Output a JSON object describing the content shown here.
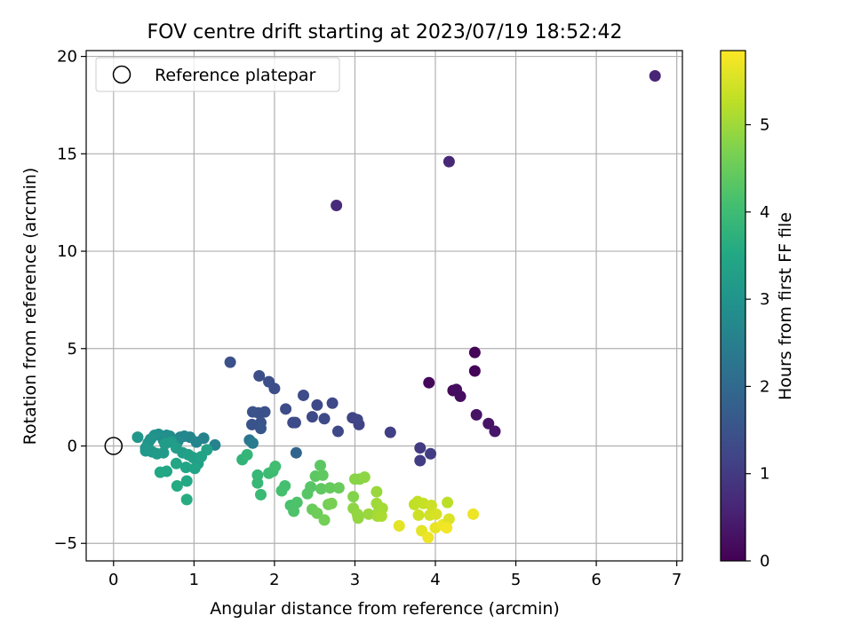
{
  "chart_data": {
    "type": "scatter",
    "title": "FOV centre drift starting at 2023/07/19 18:52:42",
    "xlabel": "Angular distance from reference (arcmin)",
    "ylabel": "Rotation from reference (arcmin)",
    "xlim": [
      -0.34,
      7.07
    ],
    "ylim": [
      -5.9,
      20.3
    ],
    "xticks": [
      0,
      1,
      2,
      3,
      4,
      5,
      6,
      7
    ],
    "yticks": [
      -5,
      0,
      5,
      10,
      15,
      20
    ],
    "grid": true,
    "legend": {
      "placement": "top-left",
      "entries": [
        {
          "label": "Reference platepar",
          "marker": "open-circle"
        }
      ]
    },
    "reference_point": {
      "x": 0,
      "y": 0
    },
    "colorbar": {
      "label": "Hours from first FF file",
      "colormap": "viridis",
      "range": [
        0,
        5.85
      ],
      "ticks": [
        0,
        1,
        2,
        3,
        4,
        5
      ]
    },
    "points": [
      {
        "x": 6.73,
        "y": 19.0,
        "t": 0.6
      },
      {
        "x": 4.17,
        "y": 14.6,
        "t": 0.65
      },
      {
        "x": 2.77,
        "y": 12.35,
        "t": 0.7
      },
      {
        "x": 4.49,
        "y": 4.8,
        "t": 0.05
      },
      {
        "x": 4.49,
        "y": 3.85,
        "t": 0.05
      },
      {
        "x": 3.92,
        "y": 3.25,
        "t": 0.1
      },
      {
        "x": 4.22,
        "y": 2.85,
        "t": 0.15
      },
      {
        "x": 4.26,
        "y": 2.9,
        "t": 0.2
      },
      {
        "x": 4.31,
        "y": 2.55,
        "t": 0.2
      },
      {
        "x": 4.51,
        "y": 1.6,
        "t": 0.3
      },
      {
        "x": 4.66,
        "y": 1.15,
        "t": 0.3
      },
      {
        "x": 4.74,
        "y": 0.75,
        "t": 0.35
      },
      {
        "x": 3.94,
        "y": -0.4,
        "t": 1.05
      },
      {
        "x": 3.81,
        "y": -0.1,
        "t": 1.0
      },
      {
        "x": 3.81,
        "y": -0.75,
        "t": 1.05
      },
      {
        "x": 3.44,
        "y": 0.7,
        "t": 1.1
      },
      {
        "x": 3.05,
        "y": 1.1,
        "t": 1.15
      },
      {
        "x": 2.97,
        "y": 1.45,
        "t": 1.2
      },
      {
        "x": 3.03,
        "y": 1.35,
        "t": 1.2
      },
      {
        "x": 2.79,
        "y": 0.75,
        "t": 1.25
      },
      {
        "x": 2.72,
        "y": 2.2,
        "t": 1.25
      },
      {
        "x": 2.62,
        "y": 1.4,
        "t": 1.3
      },
      {
        "x": 2.53,
        "y": 2.1,
        "t": 1.3
      },
      {
        "x": 2.47,
        "y": 1.5,
        "t": 1.3
      },
      {
        "x": 2.36,
        "y": 2.6,
        "t": 1.35
      },
      {
        "x": 2.26,
        "y": 1.2,
        "t": 1.35
      },
      {
        "x": 2.23,
        "y": 1.2,
        "t": 1.35
      },
      {
        "x": 2.14,
        "y": 1.9,
        "t": 1.35
      },
      {
        "x": 2.27,
        "y": -0.35,
        "t": 1.9
      },
      {
        "x": 2.0,
        "y": 2.95,
        "t": 1.4
      },
      {
        "x": 1.93,
        "y": 3.3,
        "t": 1.4
      },
      {
        "x": 1.81,
        "y": 3.6,
        "t": 1.4
      },
      {
        "x": 1.45,
        "y": 4.3,
        "t": 1.45
      },
      {
        "x": 1.88,
        "y": 1.75,
        "t": 1.45
      },
      {
        "x": 1.8,
        "y": 1.7,
        "t": 1.45
      },
      {
        "x": 1.73,
        "y": 1.75,
        "t": 1.5
      },
      {
        "x": 1.72,
        "y": 1.1,
        "t": 1.5
      },
      {
        "x": 1.83,
        "y": 1.2,
        "t": 1.5
      },
      {
        "x": 1.83,
        "y": 0.9,
        "t": 1.55
      },
      {
        "x": 1.69,
        "y": 0.3,
        "t": 2.3
      },
      {
        "x": 1.73,
        "y": 0.15,
        "t": 2.4
      },
      {
        "x": 1.26,
        "y": 0.05,
        "t": 2.6
      },
      {
        "x": 1.12,
        "y": 0.4,
        "t": 2.6
      },
      {
        "x": 1.03,
        "y": 0.2,
        "t": 2.65
      },
      {
        "x": 0.95,
        "y": 0.45,
        "t": 2.65
      },
      {
        "x": 0.88,
        "y": 0.5,
        "t": 2.7
      },
      {
        "x": 0.83,
        "y": 0.45,
        "t": 2.7
      },
      {
        "x": 0.8,
        "y": 0.25,
        "t": 2.75
      },
      {
        "x": 0.7,
        "y": 0.5,
        "t": 2.8
      },
      {
        "x": 0.66,
        "y": 0.55,
        "t": 2.85
      },
      {
        "x": 0.62,
        "y": 0.3,
        "t": 2.9
      },
      {
        "x": 0.56,
        "y": 0.6,
        "t": 2.9
      },
      {
        "x": 0.51,
        "y": 0.55,
        "t": 2.95
      },
      {
        "x": 0.46,
        "y": 0.35,
        "t": 3.0
      },
      {
        "x": 0.43,
        "y": 0.15,
        "t": 3.0
      },
      {
        "x": 0.3,
        "y": 0.45,
        "t": 3.05
      },
      {
        "x": 0.4,
        "y": -0.1,
        "t": 3.1
      },
      {
        "x": 0.4,
        "y": -0.25,
        "t": 3.1
      },
      {
        "x": 0.48,
        "y": -0.3,
        "t": 3.1
      },
      {
        "x": 0.54,
        "y": -0.4,
        "t": 3.15
      },
      {
        "x": 0.62,
        "y": -0.35,
        "t": 3.15
      },
      {
        "x": 0.64,
        "y": 0.1,
        "t": 3.2
      },
      {
        "x": 0.72,
        "y": 0.2,
        "t": 3.2
      },
      {
        "x": 0.78,
        "y": -0.1,
        "t": 3.25
      },
      {
        "x": 0.86,
        "y": -0.35,
        "t": 3.25
      },
      {
        "x": 0.93,
        "y": -0.45,
        "t": 3.3
      },
      {
        "x": 0.99,
        "y": -0.6,
        "t": 3.3
      },
      {
        "x": 1.05,
        "y": -0.9,
        "t": 3.3
      },
      {
        "x": 1.09,
        "y": -0.55,
        "t": 3.35
      },
      {
        "x": 1.16,
        "y": -0.2,
        "t": 3.35
      },
      {
        "x": 1.01,
        "y": -1.15,
        "t": 3.4
      },
      {
        "x": 0.9,
        "y": -1.1,
        "t": 3.4
      },
      {
        "x": 0.78,
        "y": -0.9,
        "t": 3.45
      },
      {
        "x": 0.66,
        "y": -1.3,
        "t": 3.45
      },
      {
        "x": 0.58,
        "y": -1.35,
        "t": 3.5
      },
      {
        "x": 0.91,
        "y": -1.8,
        "t": 3.5
      },
      {
        "x": 0.79,
        "y": -2.05,
        "t": 3.55
      },
      {
        "x": 0.91,
        "y": -2.75,
        "t": 3.6
      },
      {
        "x": 1.6,
        "y": -0.7,
        "t": 3.8
      },
      {
        "x": 1.66,
        "y": -0.45,
        "t": 3.85
      },
      {
        "x": 1.79,
        "y": -1.5,
        "t": 3.9
      },
      {
        "x": 1.79,
        "y": -1.9,
        "t": 3.9
      },
      {
        "x": 1.83,
        "y": -2.5,
        "t": 3.95
      },
      {
        "x": 1.93,
        "y": -1.4,
        "t": 4.0
      },
      {
        "x": 1.98,
        "y": -1.3,
        "t": 4.0
      },
      {
        "x": 2.01,
        "y": -1.05,
        "t": 4.05
      },
      {
        "x": 2.09,
        "y": -2.3,
        "t": 4.1
      },
      {
        "x": 2.13,
        "y": -2.05,
        "t": 4.1
      },
      {
        "x": 2.2,
        "y": -3.05,
        "t": 4.15
      },
      {
        "x": 2.24,
        "y": -3.35,
        "t": 4.2
      },
      {
        "x": 2.28,
        "y": -2.9,
        "t": 4.2
      },
      {
        "x": 2.41,
        "y": -2.45,
        "t": 4.3
      },
      {
        "x": 2.45,
        "y": -2.1,
        "t": 4.3
      },
      {
        "x": 2.51,
        "y": -1.55,
        "t": 4.35
      },
      {
        "x": 2.57,
        "y": -1.0,
        "t": 4.35
      },
      {
        "x": 2.6,
        "y": -1.5,
        "t": 4.4
      },
      {
        "x": 2.58,
        "y": -2.2,
        "t": 4.4
      },
      {
        "x": 2.69,
        "y": -2.15,
        "t": 4.45
      },
      {
        "x": 2.8,
        "y": -2.15,
        "t": 4.5
      },
      {
        "x": 2.47,
        "y": -3.25,
        "t": 4.5
      },
      {
        "x": 2.53,
        "y": -3.45,
        "t": 4.55
      },
      {
        "x": 2.62,
        "y": -3.8,
        "t": 4.6
      },
      {
        "x": 2.67,
        "y": -3.0,
        "t": 4.6
      },
      {
        "x": 2.71,
        "y": -2.95,
        "t": 4.65
      },
      {
        "x": 2.98,
        "y": -2.6,
        "t": 4.75
      },
      {
        "x": 3.0,
        "y": -1.7,
        "t": 4.8
      },
      {
        "x": 3.06,
        "y": -1.7,
        "t": 4.8
      },
      {
        "x": 3.12,
        "y": -1.6,
        "t": 4.85
      },
      {
        "x": 2.98,
        "y": -3.2,
        "t": 4.85
      },
      {
        "x": 3.03,
        "y": -3.5,
        "t": 4.9
      },
      {
        "x": 3.04,
        "y": -3.7,
        "t": 4.9
      },
      {
        "x": 3.17,
        "y": -3.5,
        "t": 4.95
      },
      {
        "x": 3.27,
        "y": -2.35,
        "t": 4.95
      },
      {
        "x": 3.27,
        "y": -2.95,
        "t": 5.0
      },
      {
        "x": 3.3,
        "y": -3.3,
        "t": 5.0
      },
      {
        "x": 3.34,
        "y": -3.2,
        "t": 5.05
      },
      {
        "x": 3.28,
        "y": -3.6,
        "t": 5.05
      },
      {
        "x": 3.33,
        "y": -3.6,
        "t": 5.1
      },
      {
        "x": 3.55,
        "y": -4.1,
        "t": 5.6
      },
      {
        "x": 3.74,
        "y": -3.0,
        "t": 5.3
      },
      {
        "x": 3.78,
        "y": -2.85,
        "t": 5.3
      },
      {
        "x": 3.79,
        "y": -3.55,
        "t": 5.4
      },
      {
        "x": 3.85,
        "y": -2.95,
        "t": 5.35
      },
      {
        "x": 3.83,
        "y": -4.35,
        "t": 5.6
      },
      {
        "x": 3.91,
        "y": -4.7,
        "t": 5.7
      },
      {
        "x": 3.93,
        "y": -3.55,
        "t": 5.45
      },
      {
        "x": 3.95,
        "y": -3.05,
        "t": 5.4
      },
      {
        "x": 4.01,
        "y": -3.5,
        "t": 5.5
      },
      {
        "x": 4.0,
        "y": -4.2,
        "t": 5.65
      },
      {
        "x": 4.09,
        "y": -4.05,
        "t": 5.7
      },
      {
        "x": 4.15,
        "y": -2.9,
        "t": 5.25
      },
      {
        "x": 4.17,
        "y": -3.75,
        "t": 5.55
      },
      {
        "x": 4.14,
        "y": -4.2,
        "t": 5.75
      },
      {
        "x": 4.47,
        "y": -3.5,
        "t": 5.7
      }
    ]
  }
}
